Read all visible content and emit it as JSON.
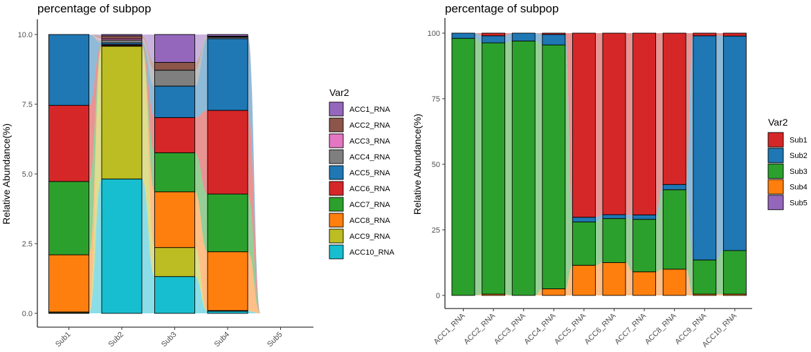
{
  "chart_data": [
    {
      "type": "bar",
      "stacked": true,
      "alluvial": true,
      "title": "percentage of subpop",
      "ylabel": "Relative Abundance(%)",
      "xlabel": "",
      "ylim": [
        0,
        10
      ],
      "yticks": [
        "0.0",
        "2.5",
        "5.0",
        "7.5",
        "10.0"
      ],
      "categories": [
        "Sub1",
        "Sub2",
        "Sub3",
        "Sub4",
        "Sub5"
      ],
      "legend": {
        "title": "Var2",
        "position": "right"
      },
      "series": [
        {
          "name": "ACC10_RNA",
          "color": "#17becf",
          "values": [
            0.02,
            4.82,
            1.32,
            0.08,
            0
          ]
        },
        {
          "name": "ACC9_RNA",
          "color": "#bcbd22",
          "values": [
            0.03,
            4.76,
            1.04,
            0.02,
            0
          ]
        },
        {
          "name": "ACC8_RNA",
          "color": "#ff7f0e",
          "values": [
            2.05,
            0.02,
            2.0,
            2.11,
            0
          ]
        },
        {
          "name": "ACC7_RNA",
          "color": "#2ca02c",
          "values": [
            2.63,
            0.01,
            1.4,
            2.07,
            0
          ]
        },
        {
          "name": "ACC6_RNA",
          "color": "#d62728",
          "values": [
            2.73,
            0.03,
            1.26,
            3.0,
            0
          ]
        },
        {
          "name": "ACC5_RNA",
          "color": "#1f77b4",
          "values": [
            2.54,
            0.06,
            1.13,
            2.57,
            0
          ]
        },
        {
          "name": "ACC4_RNA",
          "color": "#7f7f7f",
          "values": [
            0.0,
            0.1,
            0.57,
            0.05,
            0
          ]
        },
        {
          "name": "ACC3_RNA",
          "color": "#e377c2",
          "values": [
            0.0,
            0.05,
            0.0,
            0.02,
            0
          ]
        },
        {
          "name": "ACC2_RNA",
          "color": "#8c564b",
          "values": [
            0.0,
            0.1,
            0.28,
            0.02,
            0
          ]
        },
        {
          "name": "ACC1_RNA",
          "color": "#9467bd",
          "values": [
            0.0,
            0.05,
            1.0,
            0.06,
            0
          ]
        }
      ]
    },
    {
      "type": "bar",
      "stacked": true,
      "alluvial": true,
      "title": "percentage of subpop",
      "ylabel": "Relative Abundance(%)",
      "xlabel": "",
      "ylim": [
        0,
        100
      ],
      "yticks": [
        "0",
        "25",
        "50",
        "75",
        "100"
      ],
      "categories": [
        "ACC1_RNA",
        "ACC2_RNA",
        "ACC3_RNA",
        "ACC4_RNA",
        "ACC5_RNA",
        "ACC6_RNA",
        "ACC7_RNA",
        "ACC8_RNA",
        "ACC9_RNA",
        "ACC10_RNA"
      ],
      "legend": {
        "title": "Var2",
        "position": "right"
      },
      "series": [
        {
          "name": "Sub5",
          "color": "#9467bd",
          "values": [
            0,
            0,
            0,
            0,
            0,
            0,
            0,
            0,
            0,
            0
          ]
        },
        {
          "name": "Sub4",
          "color": "#ff7f0e",
          "values": [
            0,
            0.5,
            0,
            2.5,
            11.5,
            12.5,
            9,
            10,
            0.5,
            0.5
          ]
        },
        {
          "name": "Sub3",
          "color": "#2ca02c",
          "values": [
            98,
            95.8,
            97,
            93,
            16.5,
            16.8,
            20,
            30.3,
            13,
            16.6
          ]
        },
        {
          "name": "Sub2",
          "color": "#1f77b4",
          "values": [
            2,
            2.7,
            3,
            4,
            1.8,
            1.5,
            1.7,
            2,
            85.5,
            81.8
          ]
        },
        {
          "name": "Sub1",
          "color": "#d62728",
          "values": [
            0,
            1,
            0,
            0.5,
            70.2,
            69.2,
            69.3,
            57.7,
            1,
            1.1
          ]
        }
      ]
    }
  ]
}
